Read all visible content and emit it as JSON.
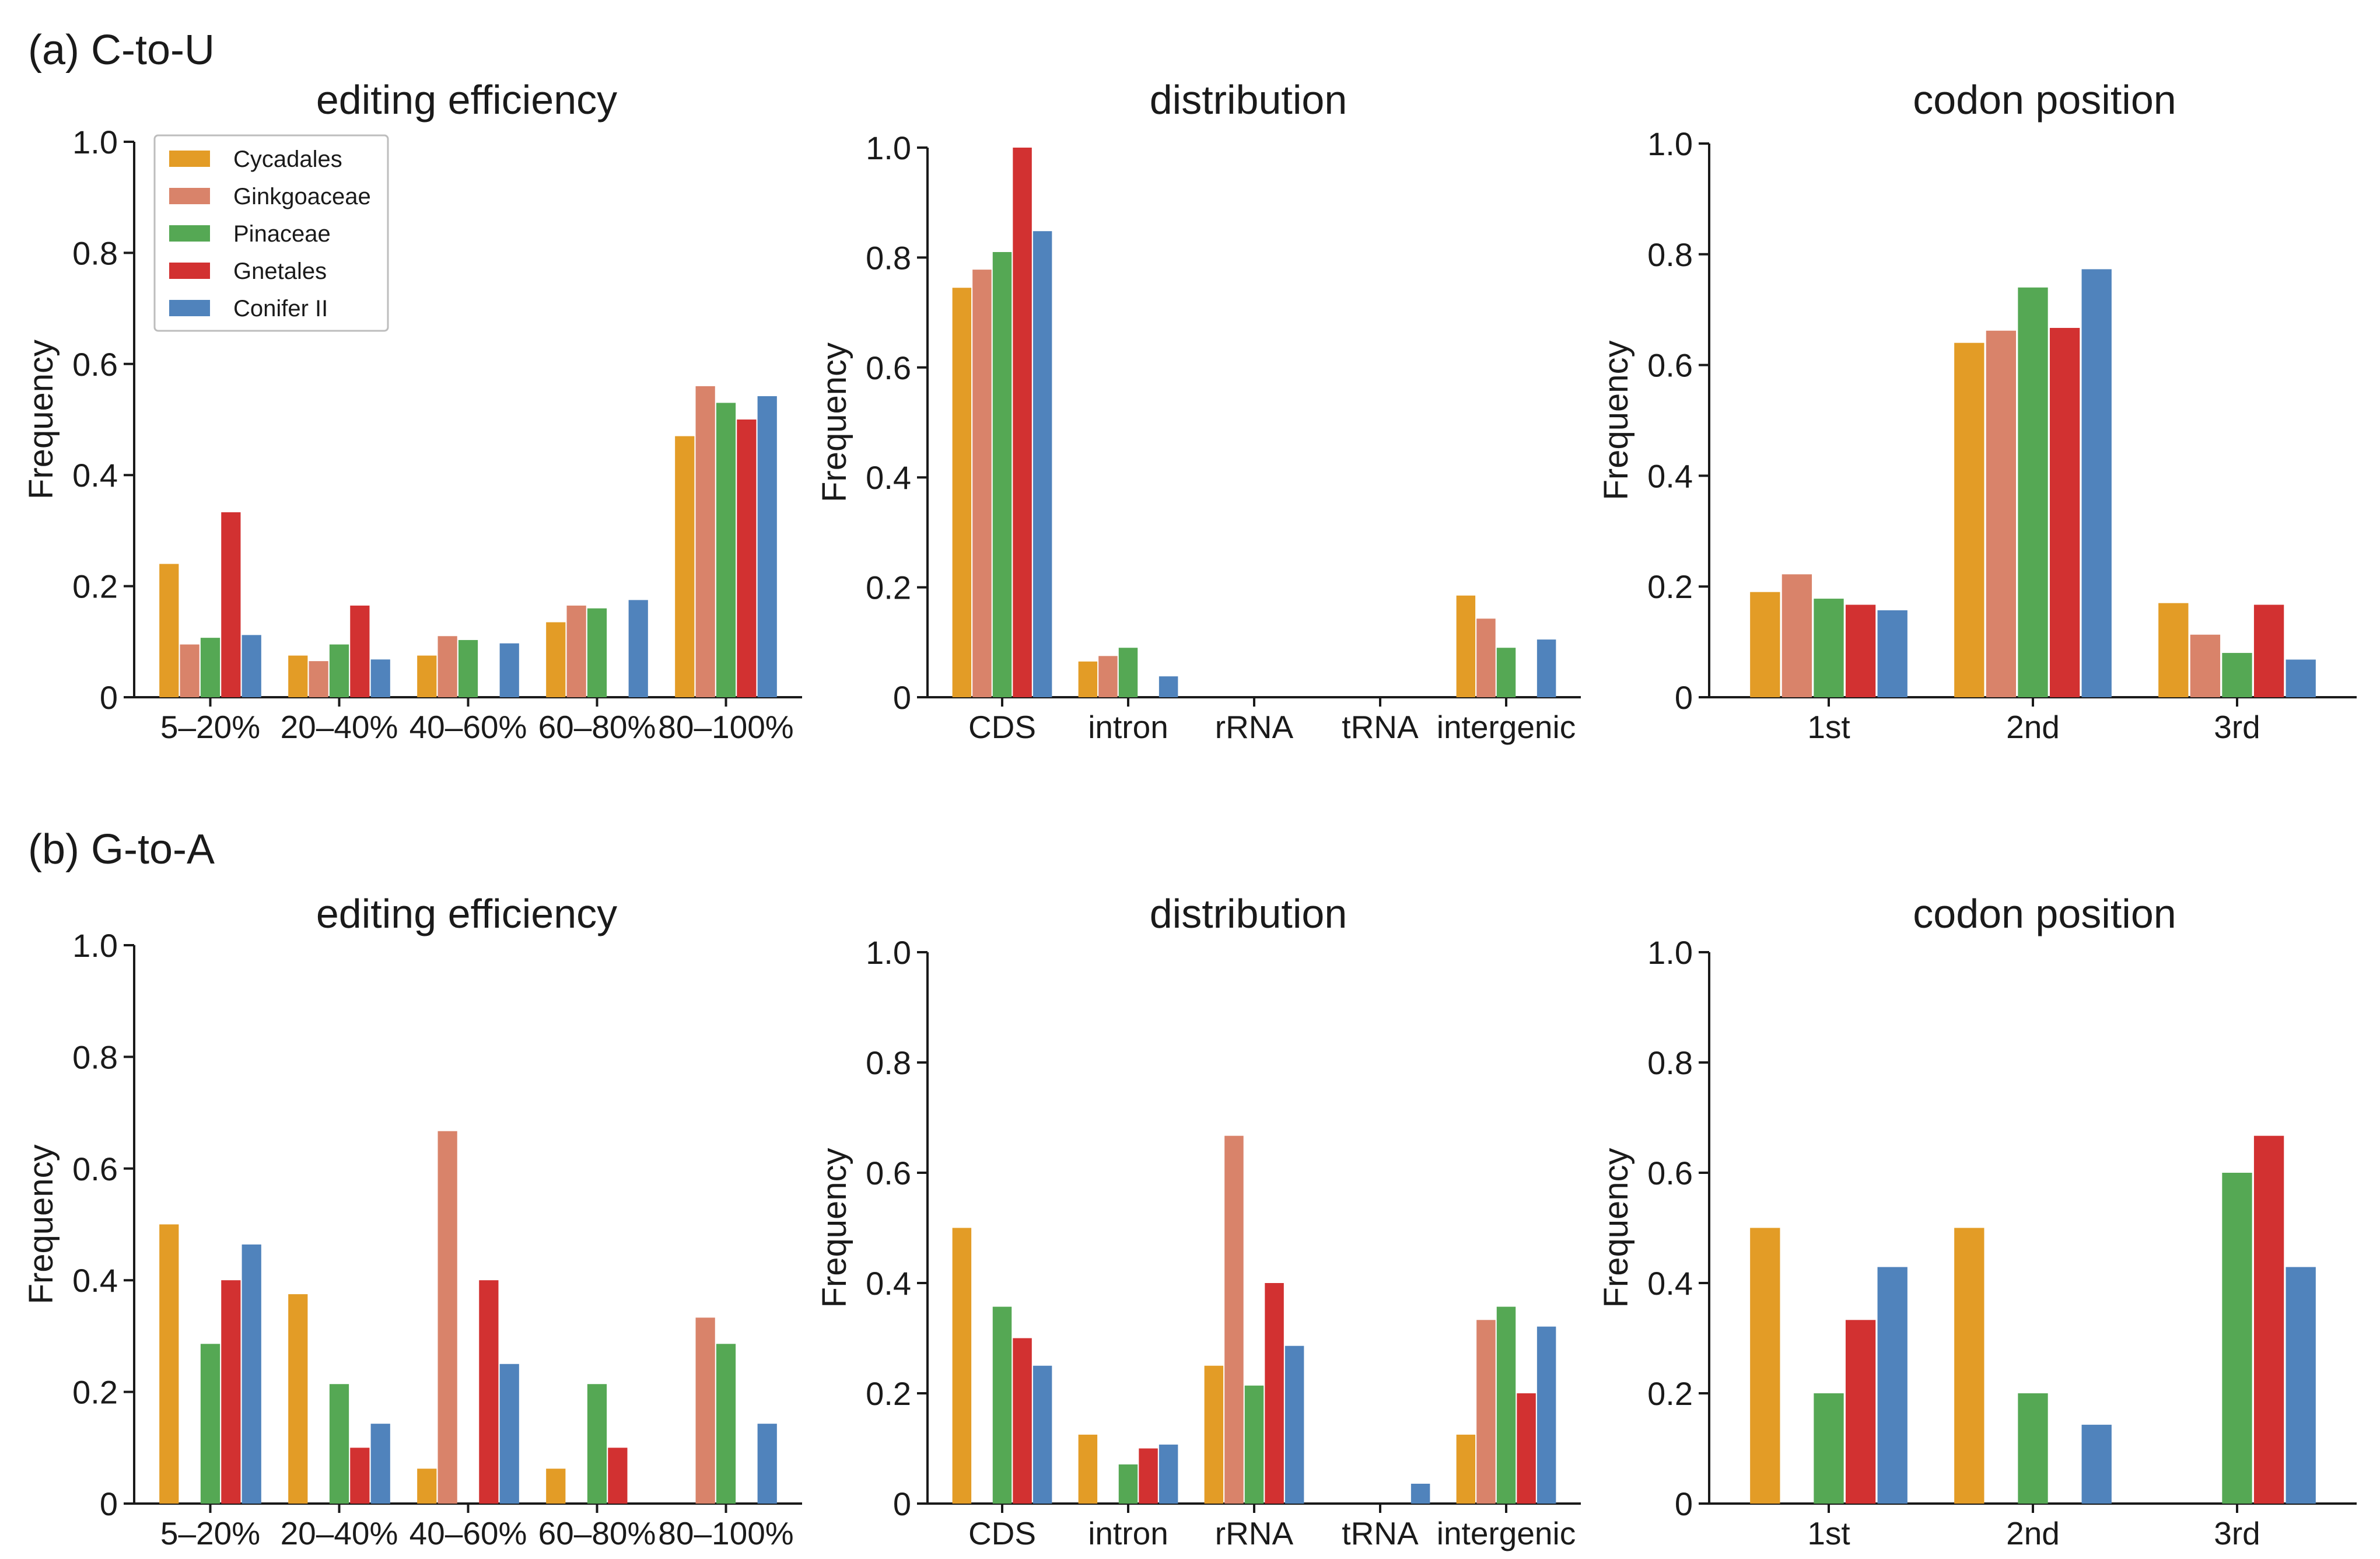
{
  "colors": {
    "Cycadales": "#E39C26",
    "Ginkgoaceae": "#D9836A",
    "Pinaceae": "#55A854",
    "Gnetales": "#D23131",
    "Conifer II": "#5083BC"
  },
  "legend": [
    "Cycadales",
    "Ginkgoaceae",
    "Pinaceae",
    "Gnetales",
    "Conifer II"
  ],
  "panels": [
    {
      "id": "a",
      "label": "(a) C-to-U"
    },
    {
      "id": "b",
      "label": "(b) G-to-A"
    }
  ],
  "chart_data": [
    {
      "panel": "a",
      "type": "bar",
      "title": "editing efficiency",
      "ylabel": "Frequency",
      "xlabel": "",
      "ylim": [
        0,
        1.0
      ],
      "yticks": [
        "0",
        "0.2",
        "0.4",
        "0.6",
        "0.8",
        "1.0"
      ],
      "categories": [
        "5–20%",
        "20–40%",
        "40–60%",
        "60–80%",
        "80–100%"
      ],
      "series": [
        {
          "name": "Cycadales",
          "values": [
            0.24,
            0.075,
            0.075,
            0.135,
            0.47
          ]
        },
        {
          "name": "Ginkgoaceae",
          "values": [
            0.095,
            0.065,
            0.11,
            0.165,
            0.56
          ]
        },
        {
          "name": "Pinaceae",
          "values": [
            0.107,
            0.095,
            0.103,
            0.16,
            0.53
          ]
        },
        {
          "name": "Gnetales",
          "values": [
            0.333,
            0.165,
            0,
            0,
            0.5
          ]
        },
        {
          "name": "Conifer II",
          "values": [
            0.112,
            0.068,
            0.097,
            0.175,
            0.542
          ]
        }
      ],
      "legend": true
    },
    {
      "panel": "a",
      "type": "bar",
      "title": "distribution",
      "ylabel": "Frequency",
      "xlabel": "",
      "ylim": [
        0,
        1.0
      ],
      "yticks": [
        "0",
        "0.2",
        "0.4",
        "0.6",
        "0.8",
        "1.0"
      ],
      "categories": [
        "CDS",
        "intron",
        "rRNA",
        "tRNA",
        "intergenic"
      ],
      "series": [
        {
          "name": "Cycadales",
          "values": [
            0.745,
            0.065,
            0,
            0,
            0.185
          ]
        },
        {
          "name": "Ginkgoaceae",
          "values": [
            0.778,
            0.075,
            0,
            0,
            0.143
          ]
        },
        {
          "name": "Pinaceae",
          "values": [
            0.81,
            0.09,
            0,
            0,
            0.09
          ]
        },
        {
          "name": "Gnetales",
          "values": [
            1.0,
            0,
            0,
            0,
            0
          ]
        },
        {
          "name": "Conifer II",
          "values": [
            0.848,
            0.038,
            0,
            0,
            0.105
          ]
        }
      ],
      "legend": false
    },
    {
      "panel": "a",
      "type": "bar",
      "title": "codon position",
      "ylabel": "Frequency",
      "xlabel": "",
      "ylim": [
        0,
        1.0
      ],
      "yticks": [
        "0",
        "0.2",
        "0.4",
        "0.6",
        "0.8",
        "1.0"
      ],
      "categories": [
        "1st",
        "2nd",
        "3rd"
      ],
      "series": [
        {
          "name": "Cycadales",
          "values": [
            0.19,
            0.64,
            0.17
          ]
        },
        {
          "name": "Ginkgoaceae",
          "values": [
            0.222,
            0.662,
            0.113
          ]
        },
        {
          "name": "Pinaceae",
          "values": [
            0.178,
            0.74,
            0.08
          ]
        },
        {
          "name": "Gnetales",
          "values": [
            0.167,
            0.667,
            0.167
          ]
        },
        {
          "name": "Conifer II",
          "values": [
            0.157,
            0.773,
            0.068
          ]
        }
      ],
      "legend": false
    },
    {
      "panel": "b",
      "type": "bar",
      "title": "editing efficiency",
      "ylabel": "Frequency",
      "xlabel": "",
      "ylim": [
        0,
        1.0
      ],
      "yticks": [
        "0",
        "0.2",
        "0.4",
        "0.6",
        "0.8",
        "1.0"
      ],
      "categories": [
        "5–20%",
        "20–40%",
        "40–60%",
        "60–80%",
        "80–100%"
      ],
      "series": [
        {
          "name": "Cycadales",
          "values": [
            0.5,
            0.375,
            0.0625,
            0.0625,
            0
          ]
        },
        {
          "name": "Ginkgoaceae",
          "values": [
            0,
            0,
            0.667,
            0,
            0.333
          ]
        },
        {
          "name": "Pinaceae",
          "values": [
            0.286,
            0.214,
            0,
            0.214,
            0.286
          ]
        },
        {
          "name": "Gnetales",
          "values": [
            0.4,
            0.1,
            0.4,
            0.1,
            0
          ]
        },
        {
          "name": "Conifer II",
          "values": [
            0.464,
            0.143,
            0.25,
            0,
            0.143
          ]
        }
      ],
      "legend": false
    },
    {
      "panel": "b",
      "type": "bar",
      "title": "distribution",
      "ylabel": "Frequency",
      "xlabel": "",
      "ylim": [
        0,
        1.0
      ],
      "yticks": [
        "0",
        "0.2",
        "0.4",
        "0.6",
        "0.8",
        "1.0"
      ],
      "categories": [
        "CDS",
        "intron",
        "rRNA",
        "tRNA",
        "intergenic"
      ],
      "series": [
        {
          "name": "Cycadales",
          "values": [
            0.5,
            0.125,
            0.25,
            0,
            0.125
          ]
        },
        {
          "name": "Ginkgoaceae",
          "values": [
            0,
            0,
            0.667,
            0,
            0.333
          ]
        },
        {
          "name": "Pinaceae",
          "values": [
            0.357,
            0.071,
            0.214,
            0,
            0.357
          ]
        },
        {
          "name": "Gnetales",
          "values": [
            0.3,
            0.1,
            0.4,
            0,
            0.2
          ]
        },
        {
          "name": "Conifer II",
          "values": [
            0.25,
            0.107,
            0.286,
            0.036,
            0.321
          ]
        }
      ],
      "legend": false
    },
    {
      "panel": "b",
      "type": "bar",
      "title": "codon position",
      "ylabel": "Frequency",
      "xlabel": "",
      "ylim": [
        0,
        1.0
      ],
      "yticks": [
        "0",
        "0.2",
        "0.4",
        "0.6",
        "0.8",
        "1.0"
      ],
      "categories": [
        "1st",
        "2nd",
        "3rd"
      ],
      "series": [
        {
          "name": "Cycadales",
          "values": [
            0.5,
            0.5,
            0
          ]
        },
        {
          "name": "Ginkgoaceae",
          "values": [
            0,
            0,
            0
          ]
        },
        {
          "name": "Pinaceae",
          "values": [
            0.2,
            0.2,
            0.6
          ]
        },
        {
          "name": "Gnetales",
          "values": [
            0.333,
            0,
            0.667
          ]
        },
        {
          "name": "Conifer II",
          "values": [
            0.429,
            0.143,
            0.429
          ]
        }
      ],
      "legend": false
    }
  ]
}
